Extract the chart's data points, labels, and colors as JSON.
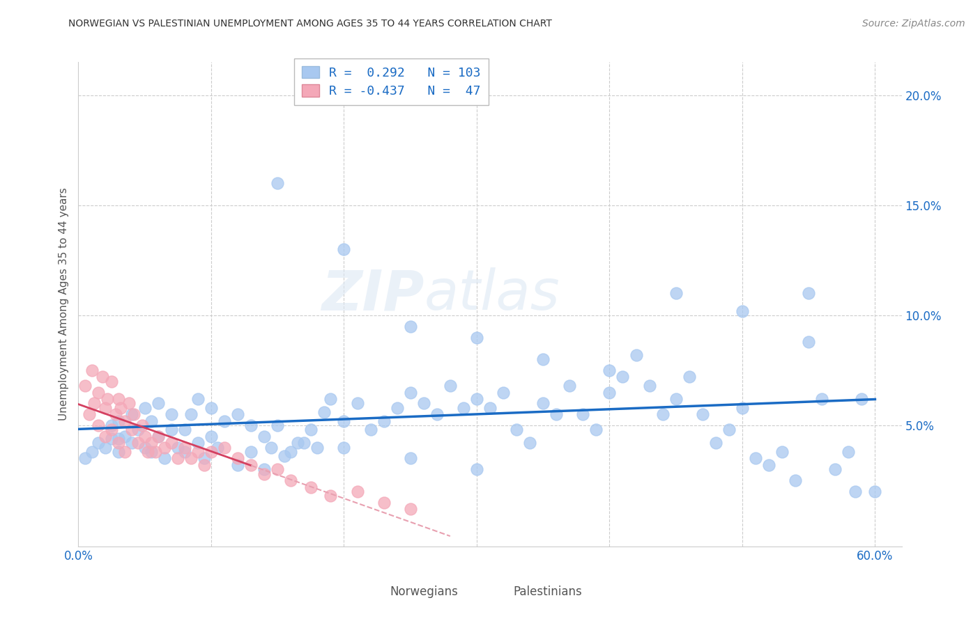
{
  "title": "NORWEGIAN VS PALESTINIAN UNEMPLOYMENT AMONG AGES 35 TO 44 YEARS CORRELATION CHART",
  "source": "Source: ZipAtlas.com",
  "ylabel": "Unemployment Among Ages 35 to 44 years",
  "xlim": [
    0.0,
    0.62
  ],
  "ylim": [
    -0.005,
    0.215
  ],
  "xticks": [
    0.0,
    0.1,
    0.2,
    0.3,
    0.4,
    0.5,
    0.6
  ],
  "xticklabels": [
    "0.0%",
    "",
    "",
    "",
    "",
    "",
    "60.0%"
  ],
  "yticks": [
    0.05,
    0.1,
    0.15,
    0.2
  ],
  "yticklabels": [
    "5.0%",
    "10.0%",
    "15.0%",
    "20.0%"
  ],
  "norwegian_color": "#a8c8f0",
  "norwegian_edge": "#7aaee0",
  "palestinian_color": "#f4a8b8",
  "palestinian_edge": "#e07898",
  "norwegian_line_color": "#1a6bc4",
  "palestinian_line_color": "#d44060",
  "palestinian_line_dashed_color": "#e8a0b0",
  "R_norwegian": 0.292,
  "N_norwegian": 103,
  "R_palestinian": -0.437,
  "N_palestinian": 47,
  "watermark_zip": "ZIP",
  "watermark_atlas": "atlas",
  "background_color": "#ffffff",
  "grid_color": "#cccccc",
  "title_color": "#333333",
  "axis_label_color": "#1a6bc4",
  "tick_color": "#1a6bc4",
  "nor_x": [
    0.005,
    0.01,
    0.015,
    0.02,
    0.025,
    0.025,
    0.03,
    0.03,
    0.03,
    0.035,
    0.04,
    0.04,
    0.045,
    0.05,
    0.05,
    0.055,
    0.055,
    0.06,
    0.06,
    0.065,
    0.07,
    0.07,
    0.075,
    0.08,
    0.08,
    0.085,
    0.09,
    0.09,
    0.095,
    0.1,
    0.1,
    0.105,
    0.11,
    0.12,
    0.12,
    0.13,
    0.13,
    0.14,
    0.14,
    0.145,
    0.15,
    0.155,
    0.16,
    0.165,
    0.17,
    0.175,
    0.18,
    0.185,
    0.19,
    0.2,
    0.2,
    0.21,
    0.22,
    0.23,
    0.24,
    0.25,
    0.25,
    0.26,
    0.27,
    0.28,
    0.29,
    0.3,
    0.3,
    0.31,
    0.32,
    0.33,
    0.34,
    0.35,
    0.36,
    0.37,
    0.38,
    0.39,
    0.4,
    0.41,
    0.42,
    0.43,
    0.44,
    0.45,
    0.46,
    0.47,
    0.48,
    0.49,
    0.5,
    0.51,
    0.52,
    0.53,
    0.54,
    0.55,
    0.56,
    0.57,
    0.58,
    0.585,
    0.59,
    0.6,
    0.35,
    0.4,
    0.45,
    0.5,
    0.55,
    0.3,
    0.25,
    0.2,
    0.15
  ],
  "nor_y": [
    0.035,
    0.038,
    0.042,
    0.04,
    0.044,
    0.05,
    0.038,
    0.044,
    0.052,
    0.045,
    0.042,
    0.055,
    0.048,
    0.04,
    0.058,
    0.038,
    0.052,
    0.045,
    0.06,
    0.035,
    0.048,
    0.055,
    0.04,
    0.038,
    0.048,
    0.055,
    0.042,
    0.062,
    0.035,
    0.045,
    0.058,
    0.04,
    0.052,
    0.055,
    0.032,
    0.038,
    0.05,
    0.045,
    0.03,
    0.04,
    0.05,
    0.036,
    0.038,
    0.042,
    0.042,
    0.048,
    0.04,
    0.056,
    0.062,
    0.052,
    0.04,
    0.06,
    0.048,
    0.052,
    0.058,
    0.065,
    0.035,
    0.06,
    0.055,
    0.068,
    0.058,
    0.062,
    0.03,
    0.058,
    0.065,
    0.048,
    0.042,
    0.06,
    0.055,
    0.068,
    0.055,
    0.048,
    0.065,
    0.072,
    0.082,
    0.068,
    0.055,
    0.062,
    0.072,
    0.055,
    0.042,
    0.048,
    0.058,
    0.035,
    0.032,
    0.038,
    0.025,
    0.088,
    0.062,
    0.03,
    0.038,
    0.02,
    0.062,
    0.02,
    0.08,
    0.075,
    0.11,
    0.102,
    0.11,
    0.09,
    0.095,
    0.13,
    0.16
  ],
  "pal_x": [
    0.005,
    0.008,
    0.01,
    0.012,
    0.015,
    0.015,
    0.018,
    0.02,
    0.02,
    0.022,
    0.025,
    0.025,
    0.028,
    0.03,
    0.03,
    0.032,
    0.035,
    0.035,
    0.038,
    0.04,
    0.042,
    0.045,
    0.048,
    0.05,
    0.052,
    0.055,
    0.058,
    0.06,
    0.065,
    0.07,
    0.075,
    0.08,
    0.085,
    0.09,
    0.095,
    0.1,
    0.11,
    0.12,
    0.13,
    0.14,
    0.15,
    0.16,
    0.175,
    0.19,
    0.21,
    0.23,
    0.25
  ],
  "pal_y": [
    0.068,
    0.055,
    0.075,
    0.06,
    0.065,
    0.05,
    0.072,
    0.058,
    0.045,
    0.062,
    0.07,
    0.048,
    0.055,
    0.062,
    0.042,
    0.058,
    0.052,
    0.038,
    0.06,
    0.048,
    0.055,
    0.042,
    0.05,
    0.045,
    0.038,
    0.042,
    0.038,
    0.045,
    0.04,
    0.042,
    0.035,
    0.04,
    0.035,
    0.038,
    0.032,
    0.038,
    0.04,
    0.035,
    0.032,
    0.028,
    0.03,
    0.025,
    0.022,
    0.018,
    0.02,
    0.015,
    0.012
  ]
}
